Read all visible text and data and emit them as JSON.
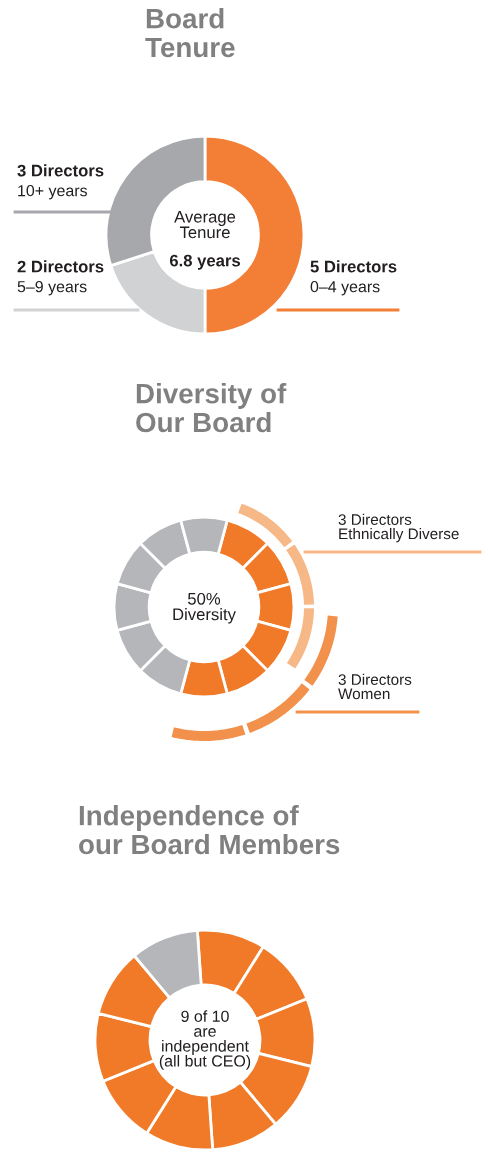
{
  "chart_data": [
    {
      "type": "donut",
      "title": "Board\nTenure",
      "categories": [
        "5 Directors\n0–4 years",
        "2 Directors\n5–9 years",
        "3 Directors\n10+ years"
      ],
      "values": [
        5,
        2,
        3
      ],
      "colors": [
        "#f37e36",
        "#d1d2d4",
        "#a7a8ab"
      ],
      "annotations": [
        "Average\nTenure",
        "6.8 years"
      ]
    },
    {
      "type": "donut",
      "title": "Diversity of\nOur Board",
      "categories": [
        null,
        null,
        null,
        null,
        null,
        null,
        null,
        null,
        null,
        null,
        null,
        null
      ],
      "values": [
        8.33,
        8.33,
        8.33,
        8.33,
        8.33,
        8.33,
        8.33,
        8.33,
        8.33,
        8.33,
        8.33,
        8.33
      ],
      "colors": [
        "#f07a28",
        "#f07a28",
        "#f07a28",
        "#f07a28",
        "#f07a28",
        "#f07a28",
        "#b5b6b9",
        "#b5b6b9",
        "#b5b6b9",
        "#b5b6b9",
        "#b5b6b9",
        "#b5b6b9"
      ],
      "annotations": [
        "50%\nDiversity",
        "3 Directors\nEthnically Diverse",
        "3 Directors\nWomen"
      ]
    },
    {
      "type": "donut",
      "title": "Independence of\nour Board Members",
      "categories": [
        null,
        null,
        null,
        null,
        null,
        null,
        null,
        null,
        null,
        null
      ],
      "values": [
        10,
        10,
        10,
        10,
        10,
        10,
        10,
        10,
        10,
        10
      ],
      "colors": [
        "#f07a28",
        "#f07a28",
        "#f07a28",
        "#f07a28",
        "#f07a28",
        "#f07a28",
        "#f07a28",
        "#f07a28",
        "#f07a28",
        "#b5b6b9"
      ],
      "annotations": [
        "9 of 10\nare\nindependent\n(all but CEO)"
      ]
    }
  ]
}
